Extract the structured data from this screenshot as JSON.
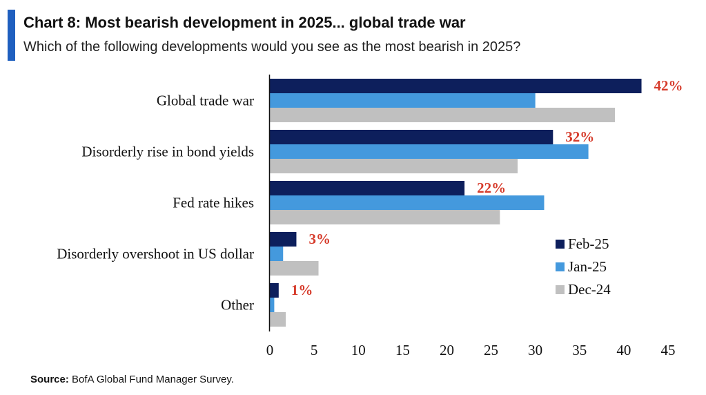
{
  "header": {
    "title": "Chart 8: Most bearish development in 2025... global trade war",
    "subtitle": "Which of the following developments would you see as the most bearish in 2025?",
    "accent_color": "#1f5fbf"
  },
  "footer": {
    "source_label": "Source:",
    "source_text": " BofA Global Fund Manager Survey."
  },
  "chart_data": {
    "type": "bar",
    "orientation": "horizontal",
    "categories": [
      "Global trade war",
      "Disorderly rise in bond yields",
      "Fed rate hikes",
      "Disorderly overshoot in US dollar",
      "Other"
    ],
    "series": [
      {
        "name": "Feb-25",
        "color": "#0d1f5c",
        "values": [
          42,
          32,
          22,
          3,
          1
        ],
        "data_labels": [
          "42%",
          "32%",
          "22%",
          "3%",
          "1%"
        ]
      },
      {
        "name": "Jan-25",
        "color": "#4499dd",
        "values": [
          30,
          36,
          31,
          1.5,
          0.5
        ]
      },
      {
        "name": "Dec-24",
        "color": "#c0c0c0",
        "values": [
          39,
          28,
          26,
          5.5,
          1.8
        ]
      }
    ],
    "xlim": [
      0,
      45
    ],
    "xticks": [
      "0",
      "5",
      "10",
      "15",
      "20",
      "25",
      "30",
      "35",
      "40",
      "45"
    ],
    "data_label_color": "#d63b2b",
    "legend_position": "lower-right",
    "grid": false
  }
}
